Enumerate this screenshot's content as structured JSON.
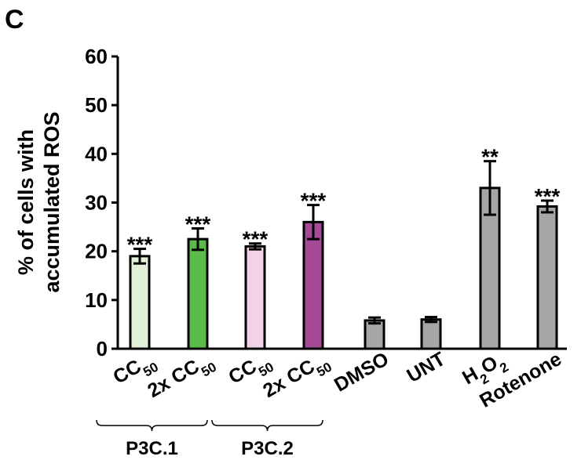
{
  "panel_label": "C",
  "chart_data": {
    "type": "bar",
    "ylabel_line1": "% of cells with",
    "ylabel_line2": "accumulated ROS",
    "xlabel": "",
    "ylim": [
      0,
      60
    ],
    "yticks": [
      0,
      10,
      20,
      30,
      40,
      50,
      60
    ],
    "grid": false,
    "categories": [
      {
        "main": "CC",
        "sub": "50",
        "prefix": ""
      },
      {
        "main": "CC",
        "sub": "50",
        "prefix": "2x "
      },
      {
        "main": "CC",
        "sub": "50",
        "prefix": ""
      },
      {
        "main": "CC",
        "sub": "50",
        "prefix": "2x "
      },
      {
        "main": "DMSO",
        "sub": "",
        "prefix": ""
      },
      {
        "main": "UNT",
        "sub": "",
        "prefix": ""
      },
      {
        "main": "H",
        "sub": "2",
        "main2": "O",
        "sub2": "2",
        "prefix": ""
      },
      {
        "main": "Rotenone",
        "sub": "",
        "prefix": ""
      }
    ],
    "values": [
      19,
      22.5,
      21,
      26,
      5.8,
      6,
      33,
      29.2
    ],
    "errors": [
      1.5,
      2.2,
      0.6,
      3.5,
      0.6,
      0.5,
      5.5,
      1.2
    ],
    "significance": [
      "***",
      "***",
      "***",
      "***",
      "",
      "",
      "**",
      "***"
    ],
    "colors": [
      "#e3f0d9",
      "#5aba4a",
      "#f2d3e6",
      "#a54a95",
      "#a6a6a6",
      "#a6a6a6",
      "#a6a6a6",
      "#a6a6a6"
    ],
    "groups": [
      {
        "label": "P3C.1",
        "start": 0,
        "end": 1
      },
      {
        "label": "P3C.2",
        "start": 2,
        "end": 3
      }
    ]
  }
}
